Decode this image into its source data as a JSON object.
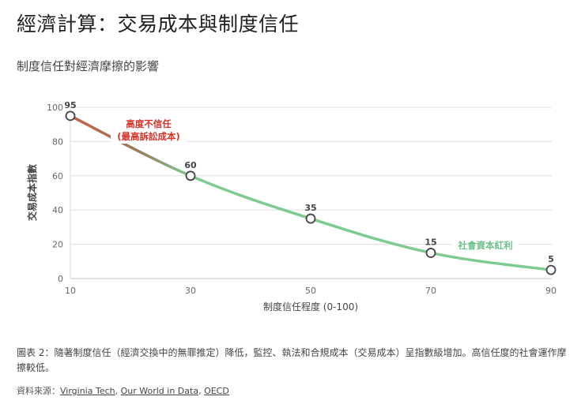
{
  "header": {
    "title": "經濟計算：交易成本與制度信任",
    "subtitle": "制度信任對經濟摩擦的影響"
  },
  "chart_data": {
    "type": "line",
    "title": "制度信任對經濟摩擦的影響",
    "xlabel": "制度信任程度 (0-100)",
    "ylabel": "交易成本指數",
    "x": [
      10,
      30,
      50,
      70,
      90
    ],
    "values": [
      95,
      60,
      35,
      15,
      5
    ],
    "data_labels": [
      "95",
      "60",
      "35",
      "15",
      "5"
    ],
    "x_ticks": [
      "10",
      "30",
      "50",
      "70",
      "90"
    ],
    "y_ticks": [
      "0",
      "20",
      "40",
      "60",
      "80",
      "100"
    ],
    "xlim": [
      10,
      90
    ],
    "ylim": [
      0,
      100
    ],
    "grid": "horizontal",
    "legend": "none",
    "annotations": [
      {
        "text_line1": "高度不信任",
        "text_line2": "(最高訴訟成本)",
        "color": "#d93025"
      },
      {
        "text": "社會資本紅利",
        "color": "#6cc18a"
      }
    ],
    "colors": {
      "line_start": "#c5604a",
      "line_end": "#7ecb91",
      "marker": "#444444"
    }
  },
  "footer": {
    "caption": "圖表 2：隨著制度信任（經濟交換中的無罪推定）降低，監控、執法和合規成本（交易成本）呈指數級增加。高信任度的社會運作摩擦較低。",
    "source_label": "資料來源：",
    "sources": [
      "Virginia Tech",
      "Our World in Data",
      "OECD"
    ],
    "separator": ", "
  }
}
